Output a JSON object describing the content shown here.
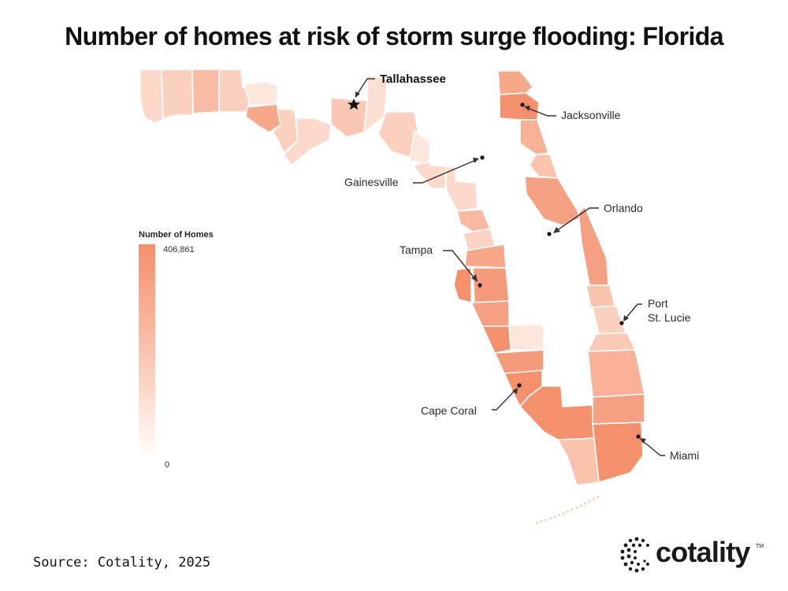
{
  "title": "Number of homes at risk of storm surge flooding: Florida",
  "legend": {
    "title": "Number of Homes",
    "max_label": "406,861",
    "min_label": "0",
    "min": 0,
    "max": 406861
  },
  "cities": [
    {
      "id": "tallahassee",
      "label": "Tallahassee",
      "capital": true
    },
    {
      "id": "jacksonville",
      "label": "Jacksonville"
    },
    {
      "id": "gainesville",
      "label": "Gainesville"
    },
    {
      "id": "orlando",
      "label": "Orlando"
    },
    {
      "id": "tampa",
      "label": "Tampa"
    },
    {
      "id": "port-st-lucie",
      "label_lines": [
        "Port",
        "St. Lucie"
      ]
    },
    {
      "id": "cape-coral",
      "label": "Cape Coral"
    },
    {
      "id": "miami",
      "label": "Miami"
    }
  ],
  "source": "Source: Cotality, 2025",
  "logo": {
    "text": "cotality",
    "tm": "TM"
  },
  "colors": {
    "high": "#f4906c",
    "mid": "#f9c3ad",
    "low": "#fde6dc",
    "none": "#ffffff",
    "border": "#ececec"
  }
}
